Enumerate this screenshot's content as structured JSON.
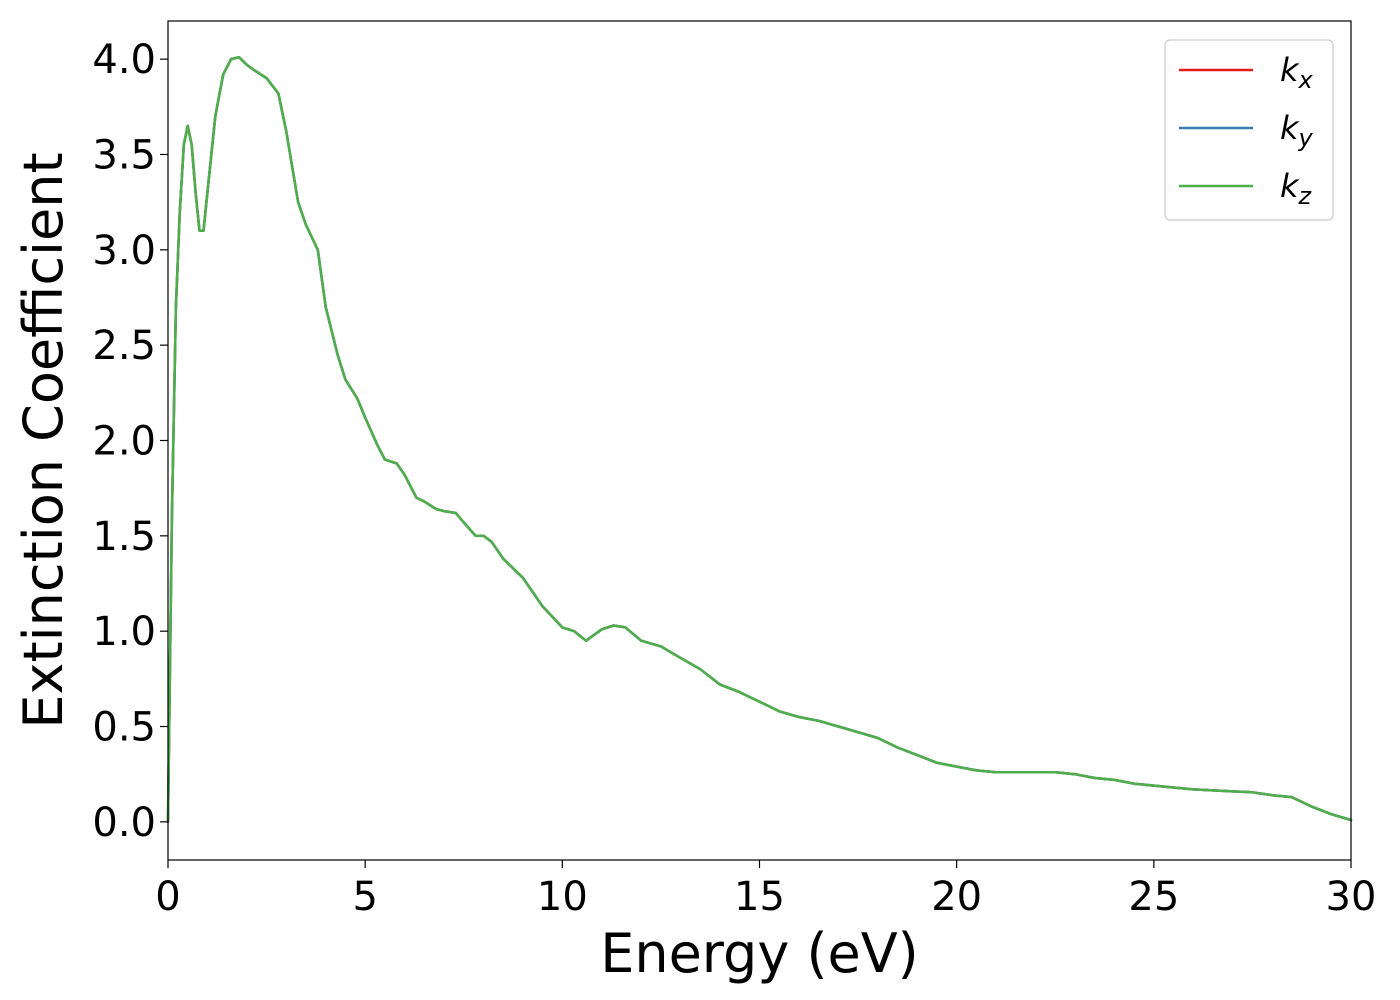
{
  "chart_data": {
    "type": "line",
    "xlabel": "Energy (eV)",
    "ylabel": "Extinction Coefficient",
    "xlim": [
      0,
      30
    ],
    "ylim": [
      -0.2,
      4.2
    ],
    "xticks": [
      0,
      5,
      10,
      15,
      20,
      25,
      30
    ],
    "xtick_labels": [
      "0",
      "5",
      "10",
      "15",
      "20",
      "25",
      "30"
    ],
    "yticks": [
      0.0,
      0.5,
      1.0,
      1.5,
      2.0,
      2.5,
      3.0,
      3.5,
      4.0
    ],
    "ytick_labels": [
      "0.0",
      "0.5",
      "1.0",
      "1.5",
      "2.0",
      "2.5",
      "3.0",
      "3.5",
      "4.0"
    ],
    "grid": false,
    "legend_position": "top-right",
    "x": [
      0,
      0.1,
      0.2,
      0.3,
      0.4,
      0.5,
      0.6,
      0.7,
      0.8,
      0.9,
      1.0,
      1.2,
      1.4,
      1.6,
      1.8,
      2.0,
      2.2,
      2.5,
      2.8,
      3.0,
      3.3,
      3.5,
      3.8,
      4.0,
      4.3,
      4.5,
      4.8,
      5.0,
      5.3,
      5.5,
      5.8,
      6.0,
      6.3,
      6.5,
      6.8,
      7.0,
      7.3,
      7.5,
      7.8,
      8.0,
      8.2,
      8.5,
      9.0,
      9.5,
      10.0,
      10.3,
      10.6,
      11.0,
      11.3,
      11.6,
      12.0,
      12.5,
      13.0,
      13.5,
      14.0,
      14.5,
      15.0,
      15.5,
      16.0,
      16.5,
      17.0,
      17.5,
      18.0,
      18.5,
      19.0,
      19.5,
      20.0,
      20.5,
      21.0,
      21.5,
      22.0,
      22.5,
      23.0,
      23.5,
      24.0,
      24.5,
      25.0,
      25.5,
      26.0,
      26.5,
      27.0,
      27.5,
      28.0,
      28.5,
      29.0,
      29.5,
      30.0
    ],
    "series": [
      {
        "name": "k",
        "subscript": "x",
        "color": "#e41a1c",
        "values": [
          0.0,
          1.6,
          2.7,
          3.2,
          3.55,
          3.65,
          3.55,
          3.3,
          3.1,
          3.1,
          3.3,
          3.7,
          3.92,
          4.0,
          4.01,
          3.97,
          3.94,
          3.9,
          3.82,
          3.62,
          3.25,
          3.13,
          3.0,
          2.7,
          2.45,
          2.32,
          2.22,
          2.12,
          1.98,
          1.9,
          1.88,
          1.82,
          1.7,
          1.68,
          1.64,
          1.63,
          1.62,
          1.57,
          1.5,
          1.5,
          1.47,
          1.38,
          1.28,
          1.13,
          1.02,
          1.0,
          0.95,
          1.01,
          1.03,
          1.02,
          0.95,
          0.92,
          0.86,
          0.8,
          0.72,
          0.68,
          0.63,
          0.58,
          0.55,
          0.53,
          0.5,
          0.47,
          0.44,
          0.39,
          0.35,
          0.31,
          0.29,
          0.27,
          0.26,
          0.26,
          0.26,
          0.26,
          0.25,
          0.23,
          0.22,
          0.2,
          0.19,
          0.18,
          0.17,
          0.165,
          0.16,
          0.155,
          0.14,
          0.13,
          0.08,
          0.04,
          0.01
        ]
      },
      {
        "name": "k",
        "subscript": "y",
        "color": "#377eb8",
        "values": [
          0.0,
          1.6,
          2.7,
          3.2,
          3.55,
          3.65,
          3.55,
          3.3,
          3.1,
          3.1,
          3.3,
          3.7,
          3.92,
          4.0,
          4.01,
          3.97,
          3.94,
          3.9,
          3.82,
          3.62,
          3.25,
          3.13,
          3.0,
          2.7,
          2.45,
          2.32,
          2.22,
          2.12,
          1.98,
          1.9,
          1.88,
          1.82,
          1.7,
          1.68,
          1.64,
          1.63,
          1.62,
          1.57,
          1.5,
          1.5,
          1.47,
          1.38,
          1.28,
          1.13,
          1.02,
          1.0,
          0.95,
          1.01,
          1.03,
          1.02,
          0.95,
          0.92,
          0.86,
          0.8,
          0.72,
          0.68,
          0.63,
          0.58,
          0.55,
          0.53,
          0.5,
          0.47,
          0.44,
          0.39,
          0.35,
          0.31,
          0.29,
          0.27,
          0.26,
          0.26,
          0.26,
          0.26,
          0.25,
          0.23,
          0.22,
          0.2,
          0.19,
          0.18,
          0.17,
          0.165,
          0.16,
          0.155,
          0.14,
          0.13,
          0.08,
          0.04,
          0.01
        ]
      },
      {
        "name": "k",
        "subscript": "z",
        "color": "#4daf4a",
        "values": [
          0.0,
          1.6,
          2.7,
          3.2,
          3.55,
          3.65,
          3.55,
          3.3,
          3.1,
          3.1,
          3.3,
          3.7,
          3.92,
          4.0,
          4.01,
          3.97,
          3.94,
          3.9,
          3.82,
          3.62,
          3.25,
          3.13,
          3.0,
          2.7,
          2.45,
          2.32,
          2.22,
          2.12,
          1.98,
          1.9,
          1.88,
          1.82,
          1.7,
          1.68,
          1.64,
          1.63,
          1.62,
          1.57,
          1.5,
          1.5,
          1.47,
          1.38,
          1.28,
          1.13,
          1.02,
          1.0,
          0.95,
          1.01,
          1.03,
          1.02,
          0.95,
          0.92,
          0.86,
          0.8,
          0.72,
          0.68,
          0.63,
          0.58,
          0.55,
          0.53,
          0.5,
          0.47,
          0.44,
          0.39,
          0.35,
          0.31,
          0.29,
          0.27,
          0.26,
          0.26,
          0.26,
          0.26,
          0.25,
          0.23,
          0.22,
          0.2,
          0.19,
          0.18,
          0.17,
          0.165,
          0.16,
          0.155,
          0.14,
          0.13,
          0.08,
          0.04,
          0.01
        ]
      }
    ]
  }
}
